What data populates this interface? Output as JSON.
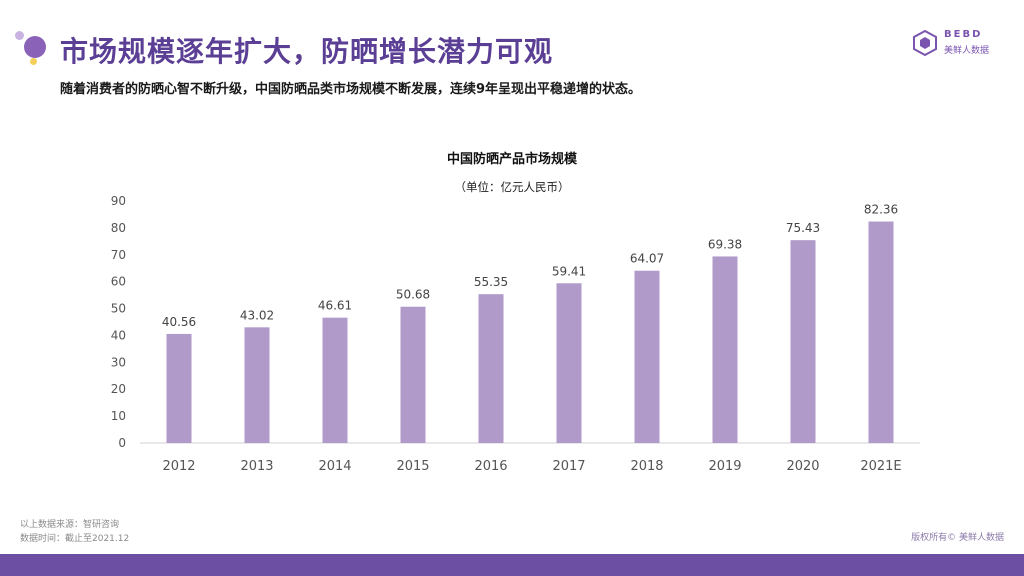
{
  "header": {
    "title": "市场规模逐年扩大，防晒增长潜力可观",
    "subtitle": "随着消费者的防晒心智不断升级，中国防晒品类市场规模不断发展，连续9年呈现出平稳递增的状态。"
  },
  "logo": {
    "brand_en": "BEBD",
    "brand_cn": "美鲜人数据",
    "icon": "hexagon-logo-icon"
  },
  "footer": {
    "source_line1": "以上数据来源：智研咨询",
    "source_line2": "数据时间：截止至2021.12",
    "copyright": "版权所有© 美鲜人数据"
  },
  "colors": {
    "accent": "#5b3f95",
    "bar": "#b09ac9",
    "footer_bar": "#6c4fa3"
  },
  "chart_data": {
    "type": "bar",
    "title": "中国防晒产品市场规模",
    "unit": "（单位：亿元人民币）",
    "categories": [
      "2012",
      "2013",
      "2014",
      "2015",
      "2016",
      "2017",
      "2018",
      "2019",
      "2020",
      "2021E"
    ],
    "values": [
      40.56,
      43.02,
      46.61,
      50.68,
      55.35,
      59.41,
      64.07,
      69.38,
      75.43,
      82.36
    ],
    "value_labels": [
      "40.56",
      "43.02",
      "46.61",
      "50.68",
      "55.35",
      "59.41",
      "64.07",
      "69.38",
      "75.43",
      "82.36"
    ],
    "yticks": [
      0,
      10,
      20,
      30,
      40,
      50,
      60,
      70,
      80,
      90
    ],
    "ylim": [
      0,
      90
    ],
    "xlabel": "",
    "ylabel": "",
    "grid": false
  }
}
